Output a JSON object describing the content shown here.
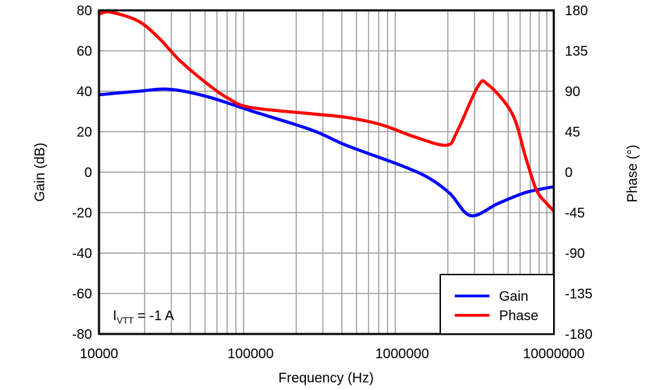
{
  "chart_data": {
    "type": "line",
    "xlabel": "Frequency (Hz)",
    "ylabel": "Gain (dB)",
    "y2label": "Phase (°)",
    "xscale": "log",
    "xlim": [
      10000,
      10000000
    ],
    "ylim": [
      -80,
      80
    ],
    "y2lim": [
      -180,
      180
    ],
    "grid": true,
    "legend_position": "bottom-right",
    "x_tick_labels": [
      "10000",
      "100000",
      "1000000",
      "10000000"
    ],
    "y_tick_labels": [
      "80",
      "60",
      "40",
      "20",
      "0",
      "-20",
      "-40",
      "-60",
      "-80"
    ],
    "y2_tick_labels": [
      "180",
      "135",
      "90",
      "45",
      "0",
      "-45",
      "-90",
      "-135",
      "-180"
    ],
    "annotation": {
      "main": "I",
      "sub": "VTT",
      "rest": " = -1 A"
    },
    "series": [
      {
        "name": "Gain",
        "axis": "left",
        "color": "#0000FF",
        "x": [
          10000,
          18200,
          29200,
          52100,
          100000,
          252000,
          427000,
          1000000,
          1510000,
          2070000,
          2830000,
          4310000,
          6560000,
          10000000
        ],
        "y": [
          38.3,
          40,
          41,
          37.3,
          30.4,
          20.9,
          13.3,
          3.1,
          -3,
          -10.6,
          -21.5,
          -15.4,
          -10,
          -7.2
        ]
      },
      {
        "name": "Phase",
        "axis": "right",
        "color": "#FF0000",
        "x": [
          10000,
          11960,
          18200,
          24900,
          34200,
          52100,
          71400,
          100000,
          252000,
          427000,
          721000,
          1220000,
          1960000,
          2300000,
          3150000,
          3650000,
          5320000,
          6560000,
          7690000,
          9000000,
          10000000
        ],
        "y": [
          176,
          178,
          168,
          149,
          124,
          98,
          82,
          72,
          65,
          61,
          53,
          39,
          30,
          45,
          95,
          98,
          65,
          15,
          -20,
          -35,
          -43
        ]
      }
    ]
  }
}
